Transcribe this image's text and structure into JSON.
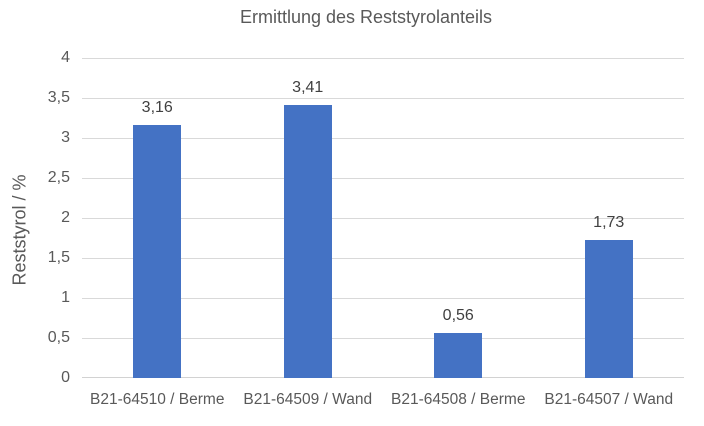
{
  "chart_data": {
    "type": "bar",
    "title": "Ermittlung des Reststyrolanteils",
    "xlabel": "",
    "ylabel": "Reststyrol / %",
    "categories": [
      "B21-64510 / Berme",
      "B21-64509 / Wand",
      "B21-64508 / Berme",
      "B21-64507 / Wand"
    ],
    "values": [
      3.16,
      3.41,
      0.56,
      1.73
    ],
    "value_labels": [
      "3,16",
      "3,41",
      "0,56",
      "1,73"
    ],
    "ylim": [
      0,
      4
    ],
    "ytick_step": 0.5,
    "yticks": [
      {
        "value": 0,
        "label": "0"
      },
      {
        "value": 0.5,
        "label": "0,5"
      },
      {
        "value": 1,
        "label": "1"
      },
      {
        "value": 1.5,
        "label": "1,5"
      },
      {
        "value": 2,
        "label": "2"
      },
      {
        "value": 2.5,
        "label": "2,5"
      },
      {
        "value": 3,
        "label": "3"
      },
      {
        "value": 3.5,
        "label": "3,5"
      },
      {
        "value": 4,
        "label": "4"
      }
    ],
    "grid": true,
    "legend": false,
    "colors": {
      "bar": "#4472C4",
      "gridline": "#D9D9D9",
      "axis_line": "#D2D2D2",
      "title_text": "#595959",
      "axis_text": "#595959",
      "value_label_text": "#404040",
      "background": "#FFFFFF"
    }
  }
}
